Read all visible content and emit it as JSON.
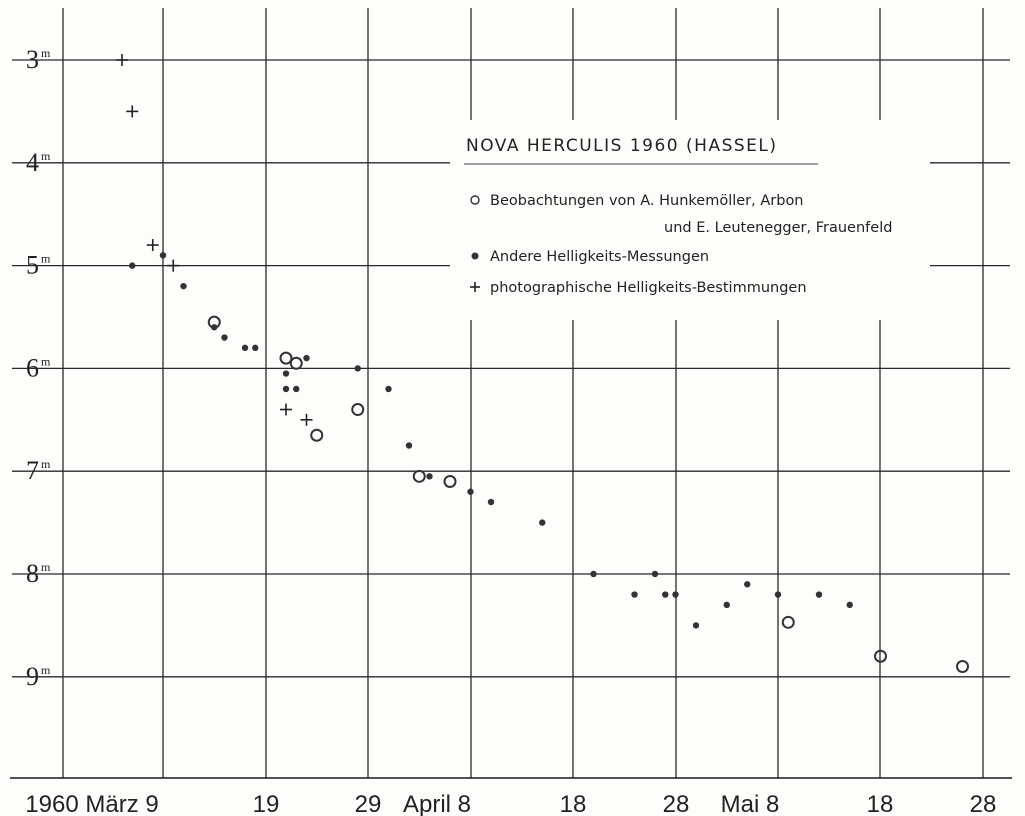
{
  "chart_data": {
    "type": "scatter",
    "title": "NOVA HERCULIS 1960 (HASSEL)",
    "x_tick_labels": [
      "1960 März 9",
      "19",
      "29",
      "April 8",
      "18",
      "28",
      "Mai 8",
      "18",
      "28"
    ],
    "y_tick_labels": [
      {
        "base": "3",
        "sup": "m"
      },
      {
        "base": "4",
        "sup": "m"
      },
      {
        "base": "5",
        "sup": "m"
      },
      {
        "base": "6",
        "sup": "m"
      },
      {
        "base": "7",
        "sup": "m"
      },
      {
        "base": "8",
        "sup": "m"
      },
      {
        "base": "9",
        "sup": "m"
      }
    ],
    "y_inverted": true,
    "grid": true,
    "legend_position": "top-right",
    "legend": {
      "title": "NOVA HERCULIS 1960 (HASSEL)",
      "entries": [
        {
          "marker": "circle-open",
          "line1": "Beobachtungen von A. Hunkemöller, Arbon",
          "line2": "und E. Leutenegger, Frauenfeld"
        },
        {
          "marker": "circle-filled",
          "line1": "Andere Helligkeits-Messungen"
        },
        {
          "marker": "plus",
          "line1": "photographische Helligkeits-Bestimmungen"
        }
      ]
    },
    "series": [
      {
        "name": "Beobachtungen von A. Hunkemöller, Arbon und E. Leutenegger, Frauenfeld",
        "marker": "circle-open",
        "points": [
          {
            "x": "1960-03-14",
            "y": 5.55
          },
          {
            "x": "1960-03-21",
            "y": 5.9
          },
          {
            "x": "1960-03-22",
            "y": 5.95
          },
          {
            "x": "1960-03-24",
            "y": 6.65
          },
          {
            "x": "1960-03-28",
            "y": 6.4
          },
          {
            "x": "1960-04-03",
            "y": 7.05
          },
          {
            "x": "1960-04-06",
            "y": 7.1
          },
          {
            "x": "1960-05-09",
            "y": 8.47
          },
          {
            "x": "1960-05-18",
            "y": 8.8
          },
          {
            "x": "1960-05-26",
            "y": 8.9
          }
        ]
      },
      {
        "name": "Andere Helligkeits-Messungen",
        "marker": "circle-filled",
        "points": [
          {
            "x": "1960-03-06",
            "y": 5.0
          },
          {
            "x": "1960-03-09",
            "y": 4.9
          },
          {
            "x": "1960-03-11",
            "y": 5.2
          },
          {
            "x": "1960-03-14",
            "y": 5.6
          },
          {
            "x": "1960-03-15",
            "y": 5.7
          },
          {
            "x": "1960-03-17",
            "y": 5.8
          },
          {
            "x": "1960-03-18",
            "y": 5.8
          },
          {
            "x": "1960-03-21",
            "y": 6.05
          },
          {
            "x": "1960-03-21",
            "y": 6.2
          },
          {
            "x": "1960-03-22",
            "y": 6.2
          },
          {
            "x": "1960-03-23",
            "y": 5.9
          },
          {
            "x": "1960-03-28",
            "y": 6.0
          },
          {
            "x": "1960-03-31",
            "y": 6.2
          },
          {
            "x": "1960-04-02",
            "y": 6.75
          },
          {
            "x": "1960-04-04",
            "y": 7.05
          },
          {
            "x": "1960-04-08",
            "y": 7.2
          },
          {
            "x": "1960-04-10",
            "y": 7.3
          },
          {
            "x": "1960-04-15",
            "y": 7.5
          },
          {
            "x": "1960-04-20",
            "y": 8.0
          },
          {
            "x": "1960-04-24",
            "y": 8.2
          },
          {
            "x": "1960-04-26",
            "y": 8.0
          },
          {
            "x": "1960-04-27",
            "y": 8.2
          },
          {
            "x": "1960-04-28",
            "y": 8.2
          },
          {
            "x": "1960-04-30",
            "y": 8.5
          },
          {
            "x": "1960-05-03",
            "y": 8.3
          },
          {
            "x": "1960-05-05",
            "y": 8.1
          },
          {
            "x": "1960-05-08",
            "y": 8.2
          },
          {
            "x": "1960-05-12",
            "y": 8.2
          },
          {
            "x": "1960-05-15",
            "y": 8.3
          }
        ]
      },
      {
        "name": "photographische Helligkeits-Bestimmungen",
        "marker": "plus",
        "points": [
          {
            "x": "1960-03-05",
            "y": 3.0
          },
          {
            "x": "1960-03-06",
            "y": 3.5
          },
          {
            "x": "1960-03-08",
            "y": 4.8
          },
          {
            "x": "1960-03-10",
            "y": 5.0
          },
          {
            "x": "1960-03-21",
            "y": 6.4
          },
          {
            "x": "1960-03-23",
            "y": 6.5
          }
        ]
      }
    ]
  }
}
